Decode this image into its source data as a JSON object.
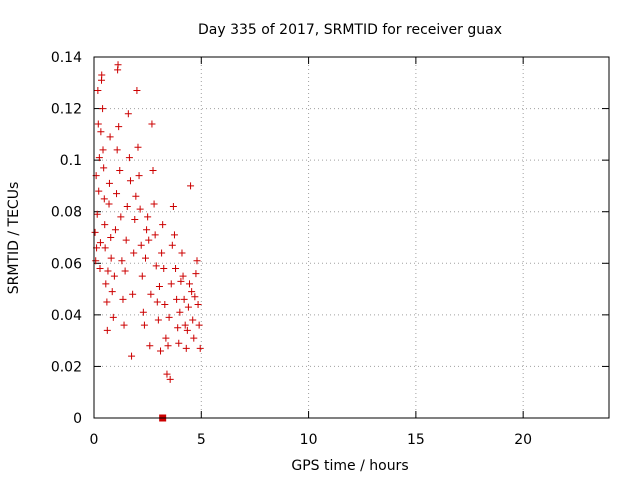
{
  "chart_data": {
    "type": "scatter",
    "title": "Day 335 of 2017, SRMTID for receiver guax",
    "xlabel": "GPS time / hours",
    "ylabel": "SRMTID / TECUs",
    "xlim": [
      0,
      24
    ],
    "ylim": [
      0,
      0.14
    ],
    "x_ticks": [
      0,
      5,
      10,
      15,
      20
    ],
    "x_tick_labels": [
      "0",
      "5",
      "10",
      "15",
      "20"
    ],
    "y_ticks": [
      0,
      0.02,
      0.04,
      0.06,
      0.08,
      0.1,
      0.12,
      0.14
    ],
    "y_tick_labels": [
      "0",
      "0.02",
      "0.04",
      "0.06",
      "0.08",
      "0.1",
      "0.12",
      "0.14"
    ],
    "grid": true,
    "marker": "plus",
    "color": "#cc0000",
    "series": [
      {
        "values": [
          [
            0.05,
            0.072
          ],
          [
            0.08,
            0.061
          ],
          [
            0.1,
            0.094
          ],
          [
            0.12,
            0.066
          ],
          [
            0.15,
            0.079
          ],
          [
            0.18,
            0.127
          ],
          [
            0.2,
            0.114
          ],
          [
            0.22,
            0.088
          ],
          [
            0.25,
            0.101
          ],
          [
            0.28,
            0.058
          ],
          [
            0.3,
            0.068
          ],
          [
            0.32,
            0.111
          ],
          [
            0.35,
            0.131
          ],
          [
            0.36,
            0.133
          ],
          [
            0.4,
            0.12
          ],
          [
            0.42,
            0.104
          ],
          [
            0.45,
            0.097
          ],
          [
            0.48,
            0.085
          ],
          [
            0.5,
            0.075
          ],
          [
            0.52,
            0.066
          ],
          [
            0.55,
            0.052
          ],
          [
            0.6,
            0.045
          ],
          [
            0.62,
            0.034
          ],
          [
            0.65,
            0.057
          ],
          [
            0.7,
            0.083
          ],
          [
            0.72,
            0.091
          ],
          [
            0.75,
            0.109
          ],
          [
            0.78,
            0.07
          ],
          [
            0.8,
            0.062
          ],
          [
            0.85,
            0.049
          ],
          [
            0.9,
            0.039
          ],
          [
            0.95,
            0.055
          ],
          [
            1.0,
            0.073
          ],
          [
            1.05,
            0.087
          ],
          [
            1.08,
            0.104
          ],
          [
            1.1,
            0.135
          ],
          [
            1.12,
            0.137
          ],
          [
            1.15,
            0.113
          ],
          [
            1.2,
            0.096
          ],
          [
            1.25,
            0.078
          ],
          [
            1.3,
            0.061
          ],
          [
            1.35,
            0.046
          ],
          [
            1.4,
            0.036
          ],
          [
            1.45,
            0.057
          ],
          [
            1.5,
            0.069
          ],
          [
            1.55,
            0.082
          ],
          [
            1.6,
            0.118
          ],
          [
            1.65,
            0.101
          ],
          [
            1.7,
            0.092
          ],
          [
            1.75,
            0.024
          ],
          [
            1.8,
            0.048
          ],
          [
            1.85,
            0.064
          ],
          [
            1.9,
            0.077
          ],
          [
            1.95,
            0.086
          ],
          [
            2.0,
            0.127
          ],
          [
            2.05,
            0.105
          ],
          [
            2.1,
            0.094
          ],
          [
            2.15,
            0.081
          ],
          [
            2.2,
            0.067
          ],
          [
            2.25,
            0.055
          ],
          [
            2.3,
            0.041
          ],
          [
            2.35,
            0.036
          ],
          [
            2.4,
            0.062
          ],
          [
            2.45,
            0.073
          ],
          [
            2.5,
            0.078
          ],
          [
            2.55,
            0.069
          ],
          [
            2.6,
            0.028
          ],
          [
            2.65,
            0.048
          ],
          [
            2.7,
            0.114
          ],
          [
            2.75,
            0.096
          ],
          [
            2.8,
            0.083
          ],
          [
            2.85,
            0.071
          ],
          [
            2.9,
            0.059
          ],
          [
            2.95,
            0.045
          ],
          [
            3.0,
            0.038
          ],
          [
            3.05,
            0.051
          ],
          [
            3.1,
            0.026
          ],
          [
            3.15,
            0.064
          ],
          [
            3.2,
            0.075
          ],
          [
            3.25,
            0.058
          ],
          [
            3.3,
            0.044
          ],
          [
            3.35,
            0.031
          ],
          [
            3.4,
            0.017
          ],
          [
            3.45,
            0.028
          ],
          [
            3.5,
            0.039
          ],
          [
            3.55,
            0.015
          ],
          [
            3.6,
            0.052
          ],
          [
            3.65,
            0.067
          ],
          [
            3.7,
            0.082
          ],
          [
            3.75,
            0.071
          ],
          [
            3.8,
            0.058
          ],
          [
            3.85,
            0.046
          ],
          [
            3.9,
            0.035
          ],
          [
            3.95,
            0.029
          ],
          [
            4.0,
            0.041
          ],
          [
            4.05,
            0.053
          ],
          [
            4.1,
            0.064
          ],
          [
            4.15,
            0.055
          ],
          [
            4.2,
            0.046
          ],
          [
            4.25,
            0.036
          ],
          [
            4.3,
            0.027
          ],
          [
            4.35,
            0.034
          ],
          [
            4.4,
            0.043
          ],
          [
            4.45,
            0.052
          ],
          [
            4.5,
            0.09
          ],
          [
            4.55,
            0.049
          ],
          [
            4.6,
            0.038
          ],
          [
            4.65,
            0.031
          ],
          [
            4.7,
            0.047
          ],
          [
            4.75,
            0.056
          ],
          [
            4.8,
            0.061
          ],
          [
            4.85,
            0.044
          ],
          [
            4.9,
            0.036
          ],
          [
            4.95,
            0.027
          ]
        ]
      }
    ],
    "bar_marker": {
      "x": 3.2,
      "y": 0,
      "color": "#cc0000"
    }
  }
}
